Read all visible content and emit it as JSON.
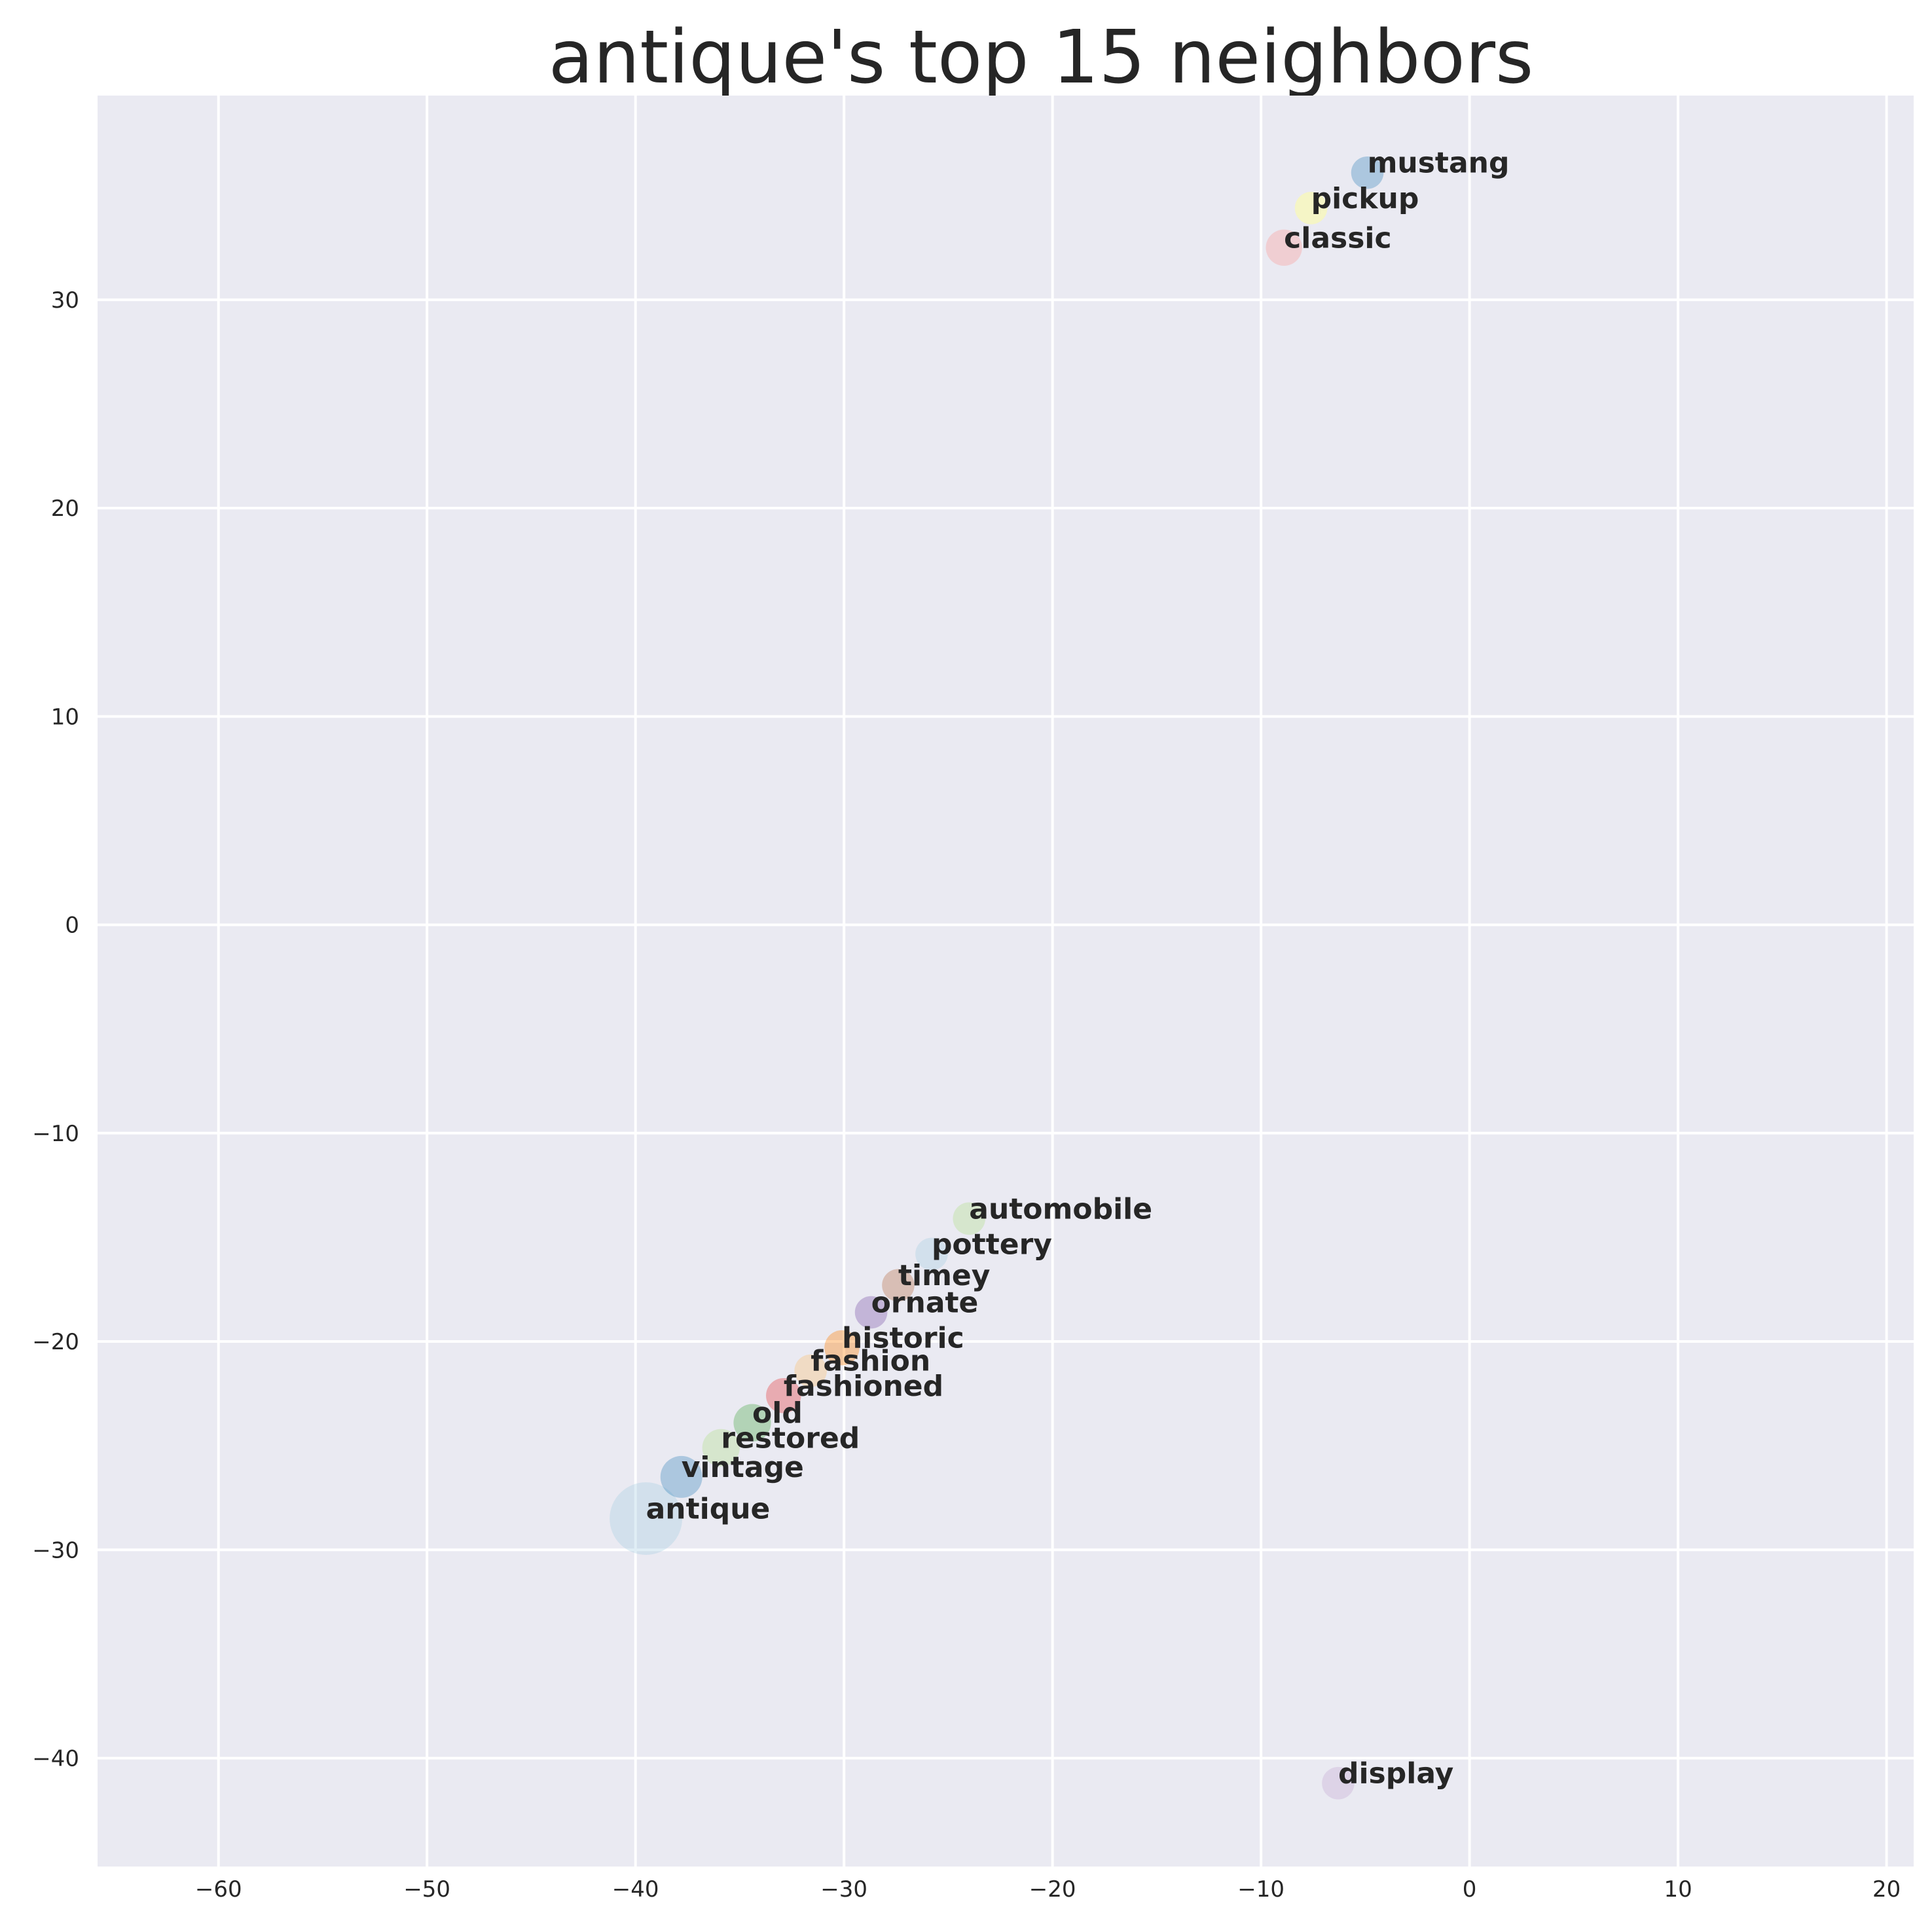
{
  "chart_data": {
    "type": "scatter",
    "title": "antique's top 15 neighbors",
    "xlabel": "",
    "ylabel": "",
    "xlim": [
      -65.8,
      21.3
    ],
    "ylim": [
      -45.2,
      39.8
    ],
    "x_ticks": [
      -60,
      -50,
      -40,
      -30,
      -20,
      -10,
      0,
      10,
      20
    ],
    "y_ticks": [
      -40,
      -30,
      -20,
      -10,
      0,
      10,
      20,
      30
    ],
    "x_tick_labels": [
      "−60",
      "−50",
      "−40",
      "−30",
      "−20",
      "−10",
      "0",
      "10",
      "20"
    ],
    "y_tick_labels": [
      "−40",
      "−30",
      "−20",
      "−10",
      "0",
      "10",
      "20",
      "30"
    ],
    "grid": true,
    "background": "#eaeaf2",
    "points": [
      {
        "label": "antique",
        "x": -39.5,
        "y": -28.5,
        "size": 3.0,
        "color": "#a6cee3",
        "alpha": 0.35
      },
      {
        "label": "vintage",
        "x": -37.8,
        "y": -26.5,
        "size": 1.0,
        "color": "#1f78b4",
        "alpha": 0.3
      },
      {
        "label": "restored",
        "x": -35.9,
        "y": -25.1,
        "size": 0.8,
        "color": "#b2df8a",
        "alpha": 0.35
      },
      {
        "label": "old",
        "x": -34.4,
        "y": -23.9,
        "size": 0.8,
        "color": "#33a02c",
        "alpha": 0.3
      },
      {
        "label": "fashioned",
        "x": -32.9,
        "y": -22.6,
        "size": 0.7,
        "color": "#e31a1c",
        "alpha": 0.3
      },
      {
        "label": "fashion",
        "x": -31.6,
        "y": -21.4,
        "size": 0.6,
        "color": "#fdbf6f",
        "alpha": 0.35
      },
      {
        "label": "historic",
        "x": -30.1,
        "y": -20.3,
        "size": 0.7,
        "color": "#ff7f00",
        "alpha": 0.35
      },
      {
        "label": "ornate",
        "x": -28.7,
        "y": -18.6,
        "size": 0.6,
        "color": "#6a3d9a",
        "alpha": 0.3
      },
      {
        "label": "timey",
        "x": -27.4,
        "y": -17.3,
        "size": 0.6,
        "color": "#b15928",
        "alpha": 0.3
      },
      {
        "label": "pottery",
        "x": -25.8,
        "y": -15.8,
        "size": 0.6,
        "color": "#a6cee3",
        "alpha": 0.35
      },
      {
        "label": "automobile",
        "x": -24.0,
        "y": -14.1,
        "size": 0.6,
        "color": "#b2df8a",
        "alpha": 0.35
      },
      {
        "label": "mustang",
        "x": -4.9,
        "y": 36.1,
        "size": 0.6,
        "color": "#1f78b4",
        "alpha": 0.3
      },
      {
        "label": "pickup",
        "x": -7.6,
        "y": 34.4,
        "size": 0.6,
        "color": "#ffff99",
        "alpha": 0.5
      },
      {
        "label": "classic",
        "x": -8.9,
        "y": 32.5,
        "size": 0.75,
        "color": "#fb9a99",
        "alpha": 0.35
      },
      {
        "label": "display",
        "x": -6.3,
        "y": -41.2,
        "size": 0.6,
        "color": "#cab2d6",
        "alpha": 0.4
      }
    ]
  }
}
